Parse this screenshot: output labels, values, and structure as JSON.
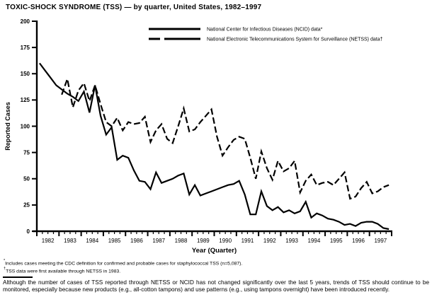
{
  "title": "TOXIC-SHOCK SYNDROME (TSS) — by quarter, United States, 1982–1997",
  "colors": {
    "ink": "#000000",
    "background": "#ffffff"
  },
  "chart_data": {
    "type": "line",
    "title": "TOXIC-SHOCK SYNDROME (TSS) — by quarter, United States, 1982–1997",
    "xlabel": "Year (Quarter)",
    "ylabel": "Reported Cases",
    "ylim": [
      0,
      200
    ],
    "yticks": [
      0,
      25,
      50,
      75,
      100,
      125,
      150,
      175,
      200
    ],
    "grid": false,
    "legend_position": "top-center",
    "x_unit": "quarter",
    "quarters_per_year": 4,
    "years": [
      "1982",
      "1983",
      "1984",
      "1985",
      "1986",
      "1987",
      "1988",
      "1989",
      "1990",
      "1991",
      "1992",
      "1993",
      "1994",
      "1995",
      "1996",
      "1997"
    ],
    "series": [
      {
        "name": "National Center for Infectious Diseases (NCID) data*",
        "style": "solid",
        "values": [
          160,
          153,
          146,
          139,
          135,
          131,
          128,
          124,
          133,
          113,
          139,
          110,
          92,
          99,
          68,
          72,
          70,
          58,
          48,
          47,
          40,
          56,
          46,
          48,
          50,
          53,
          55,
          35,
          44,
          34,
          36,
          38,
          40,
          42,
          44,
          45,
          48,
          35,
          16,
          16,
          38,
          24,
          20,
          23,
          18,
          20,
          17,
          19,
          28,
          13,
          17,
          15,
          12,
          11,
          9,
          6,
          7,
          5,
          8,
          9,
          9,
          7,
          3,
          2
        ]
      },
      {
        "name": "National Electronic Telecommunications System for Surveillance (NETSS) data†",
        "style": "dashed",
        "values": [
          null,
          null,
          null,
          null,
          130,
          145,
          118,
          134,
          141,
          124,
          139,
          121,
          104,
          100,
          108,
          96,
          104,
          102,
          103,
          109,
          85,
          96,
          102,
          88,
          84,
          100,
          117,
          95,
          97,
          104,
          110,
          116,
          90,
          72,
          80,
          87,
          90,
          88,
          70,
          50,
          76,
          60,
          49,
          67,
          57,
          60,
          67,
          37,
          48,
          54,
          44,
          46,
          47,
          44,
          50,
          56,
          31,
          33,
          41,
          47,
          36,
          38,
          42,
          44
        ]
      }
    ]
  },
  "footnotes": [
    {
      "symbol": "*",
      "text": "Includes cases meeting the CDC definition for confirmed and probable cases for staphylococcal TSS (n=5,087)."
    },
    {
      "symbol": "†",
      "text": "TSS data were first available through NETSS in 1983."
    }
  ],
  "editorial_note": "Although the number of cases of TSS reported through NETSS or NCID has not changed significantly over the last 5 years, trends of TSS should continue to be monitored, especially because new products (e.g., all-cotton tampons) and use patterns (e.g., using tampons overnight) have been introduced recently."
}
